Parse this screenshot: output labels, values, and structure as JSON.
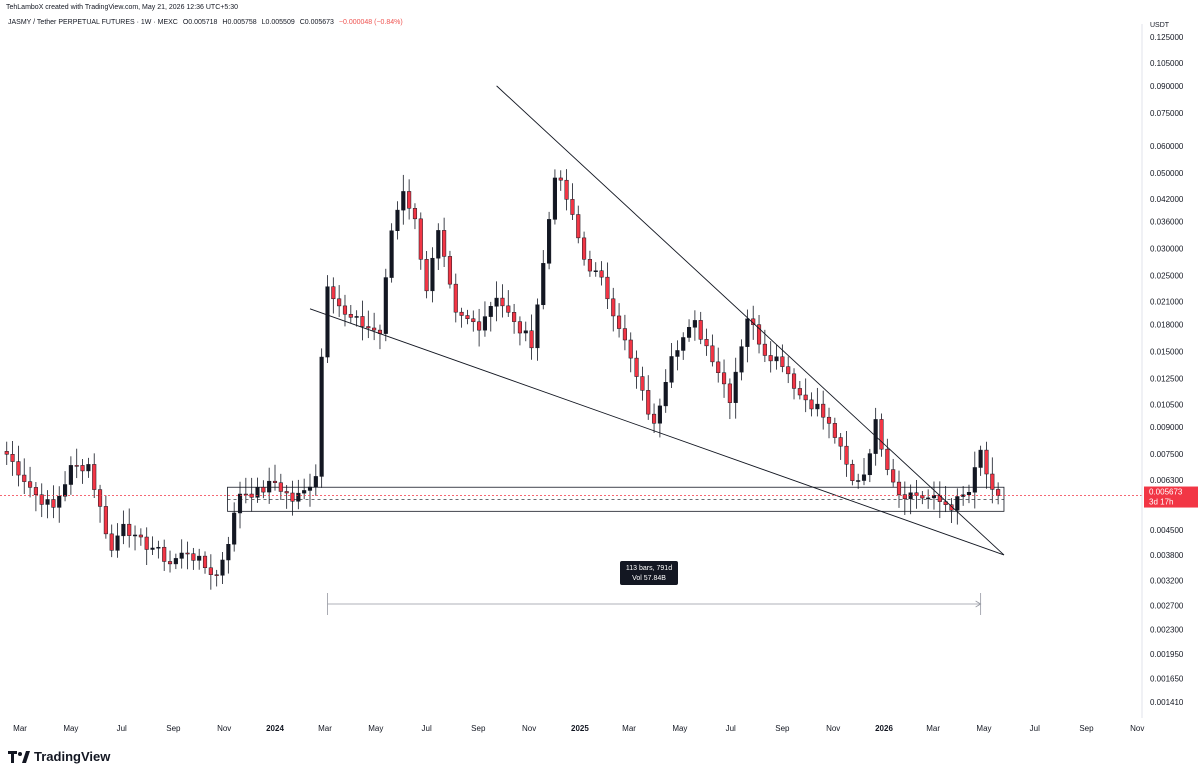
{
  "header": {
    "credit": "TehLamboX created with TradingView.com, May 21, 2026 12:36 UTC+5:30",
    "symbol": "JASMY / Tether PERPETUAL FUTURES · 1W · MEXC",
    "open": "O0.005718",
    "high": "H0.005758",
    "low": "L0.005509",
    "close": "C0.005673",
    "change": "−0.000048 (−0.84%)"
  },
  "price_axis": {
    "currency": "USDT",
    "current_price": "0.005673",
    "countdown": "3d 17h"
  },
  "brand": {
    "name": "TradingView",
    "icon": "tradingview-logo-icon"
  },
  "measure": {
    "bars": "113 bars, 791d",
    "volume": "Vol 57.84B"
  },
  "colors": {
    "up": "#131722",
    "down": "#f23645",
    "current_price_bg": "#f23645",
    "line": "#131722"
  },
  "chart_data": {
    "type": "candlestick",
    "interval": "1W",
    "y_scale": "log",
    "ylim": [
      0.00135,
      0.13
    ],
    "y_ticks": [
      "0.125000",
      "0.105000",
      "0.090000",
      "0.075000",
      "0.060000",
      "0.050000",
      "0.042000",
      "0.036000",
      "0.030000",
      "0.025000",
      "0.021000",
      "0.018000",
      "0.015000",
      "0.012500",
      "0.010500",
      "0.009000",
      "0.007500",
      "0.006300",
      "0.004500",
      "0.003800",
      "0.003200",
      "0.002700",
      "0.002300",
      "0.001950",
      "0.001650",
      "0.001410"
    ],
    "x_ticks": [
      "Mar",
      "May",
      "Jul",
      "Sep",
      "Nov",
      "2024",
      "Mar",
      "May",
      "Jul",
      "Sep",
      "Nov",
      "2025",
      "Mar",
      "May",
      "Jul",
      "Sep",
      "Nov",
      "2026",
      "Mar",
      "May",
      "Jul",
      "Sep",
      "Nov"
    ],
    "x_ticks_bold": [
      "2024",
      "2025",
      "2026"
    ],
    "waypoints": [
      [
        "2023-02-13",
        0.0075
      ],
      [
        "2023-03-20",
        0.0057
      ],
      [
        "2023-04-10",
        0.0052
      ],
      [
        "2023-05-01",
        0.0068
      ],
      [
        "2023-05-22",
        0.007
      ],
      [
        "2023-06-05",
        0.0052
      ],
      [
        "2023-06-19",
        0.0039
      ],
      [
        "2023-07-03",
        0.0048
      ],
      [
        "2023-07-17",
        0.0042
      ],
      [
        "2023-08-07",
        0.004
      ],
      [
        "2023-08-28",
        0.0036
      ],
      [
        "2023-09-18",
        0.0039
      ],
      [
        "2023-10-09",
        0.0035
      ],
      [
        "2023-10-23",
        0.0033
      ],
      [
        "2023-11-06",
        0.0042
      ],
      [
        "2023-11-20",
        0.0058
      ],
      [
        "2023-12-11",
        0.0058
      ],
      [
        "2024-01-01",
        0.0062
      ],
      [
        "2024-01-22",
        0.0055
      ],
      [
        "2024-02-05",
        0.0058
      ],
      [
        "2024-02-19",
        0.0066
      ],
      [
        "2024-02-26",
        0.0145
      ],
      [
        "2024-03-04",
        0.024
      ],
      [
        "2024-03-25",
        0.019
      ],
      [
        "2024-04-15",
        0.018
      ],
      [
        "2024-05-06",
        0.017
      ],
      [
        "2024-05-20",
        0.034
      ],
      [
        "2024-06-03",
        0.045
      ],
      [
        "2024-06-17",
        0.036
      ],
      [
        "2024-07-01",
        0.023
      ],
      [
        "2024-07-15",
        0.033
      ],
      [
        "2024-08-05",
        0.019
      ],
      [
        "2024-09-02",
        0.018
      ],
      [
        "2024-09-23",
        0.022
      ],
      [
        "2024-10-14",
        0.018
      ],
      [
        "2024-11-04",
        0.016
      ],
      [
        "2024-11-18",
        0.027
      ],
      [
        "2024-12-02",
        0.05
      ],
      [
        "2024-12-16",
        0.042
      ],
      [
        "2025-01-06",
        0.028
      ],
      [
        "2025-01-27",
        0.024
      ],
      [
        "2025-02-17",
        0.018
      ],
      [
        "2025-03-10",
        0.0125
      ],
      [
        "2025-03-31",
        0.009
      ],
      [
        "2025-04-21",
        0.015
      ],
      [
        "2025-05-19",
        0.018
      ],
      [
        "2025-06-09",
        0.0145
      ],
      [
        "2025-06-30",
        0.011
      ],
      [
        "2025-07-21",
        0.019
      ],
      [
        "2025-08-11",
        0.015
      ],
      [
        "2025-09-01",
        0.014
      ],
      [
        "2025-09-22",
        0.0112
      ],
      [
        "2025-10-13",
        0.0103
      ],
      [
        "2025-11-03",
        0.0085
      ],
      [
        "2025-11-24",
        0.0062
      ],
      [
        "2025-12-08",
        0.0066
      ],
      [
        "2025-12-22",
        0.0092
      ],
      [
        "2026-01-05",
        0.007
      ],
      [
        "2026-01-19",
        0.0058
      ],
      [
        "2026-02-09",
        0.0057
      ],
      [
        "2026-03-02",
        0.0055
      ],
      [
        "2026-03-23",
        0.0053
      ],
      [
        "2026-04-13",
        0.0058
      ],
      [
        "2026-04-27",
        0.0076
      ],
      [
        "2026-05-11",
        0.0057
      ],
      [
        "2026-05-18",
        0.005673
      ]
    ],
    "lines": [
      {
        "name": "falling-wedge-upper",
        "from": [
          "2024-09-23",
          0.09
        ],
        "to": [
          "2026-05-25",
          0.0038
        ]
      },
      {
        "name": "falling-wedge-lower",
        "from": [
          "2024-02-12",
          0.02
        ],
        "to": [
          "2026-05-25",
          0.0038
        ]
      }
    ],
    "support_zone": {
      "from": "2023-11-05",
      "to": "2026-05-25",
      "top": 0.006,
      "bottom": 0.0051
    },
    "measure_range": {
      "from": "2024-03-04",
      "to": "2026-04-27"
    }
  }
}
